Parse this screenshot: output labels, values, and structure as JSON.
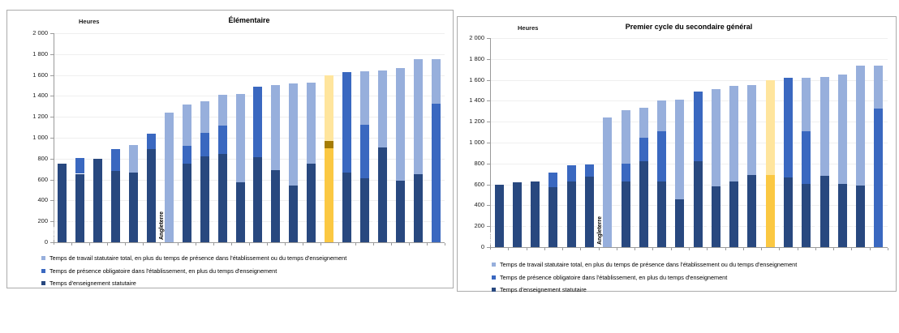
{
  "page": {
    "background": "#ffffff"
  },
  "colors": {
    "teaching": "#28487f",
    "presence": "#3a68c0",
    "total": "#97afdc",
    "france_teaching": "#fbc842",
    "france_presence": "#a57c04",
    "france_total": "#ffe59d",
    "axis": "#9a9a9a",
    "grid": "#efefef",
    "panel_border": "#ababab",
    "bar_label_default": "#ffffff"
  },
  "legend": {
    "items": [
      {
        "key": "total",
        "label": "Temps de travail statutaire total, en plus du temps de  présence dans l'établissement ou du temps d'enseignement"
      },
      {
        "key": "presence",
        "label": "Temps de présence obligatoire dans l'établissement, en plus du temps d'enseignement"
      },
      {
        "key": "teaching",
        "label": "Temps d'enseignement statutaire"
      }
    ]
  },
  "chart_data": [
    {
      "type": "bar",
      "title": "Élémentaire",
      "y_axis_label": "Heures",
      "ylim": [
        0,
        2000
      ],
      "y_tick_values": [
        0,
        200,
        400,
        600,
        800,
        1000,
        1200,
        1400,
        1600,
        1800,
        2000
      ],
      "y_tick_labels": [
        "0",
        "200",
        "400",
        "600",
        "800",
        "1 000",
        "1 200",
        "1 400",
        "1 600",
        "1 800",
        "2 000"
      ],
      "series_names": [
        "Temps d'enseignement statutaire",
        "Temps de présence obligatoire",
        "Temps de travail statutaire total"
      ],
      "bars": [
        {
          "label": "Italie",
          "teaching": 750,
          "presence": null,
          "total": null
        },
        {
          "label": "Finlande",
          "teaching": 655,
          "presence": 810,
          "total": null
        },
        {
          "label": "Autriche",
          "teaching": 800,
          "presence": null,
          "total": null
        },
        {
          "label": "Belgique nl.",
          "teaching": 680,
          "presence": 890,
          "total": null
        },
        {
          "label": "Belgique fr.",
          "teaching": 670,
          "presence": null,
          "total": 930
        },
        {
          "label": "Irlande",
          "teaching": 890,
          "presence": 1040,
          "total": null
        },
        {
          "label": "Angleterre",
          "teaching": null,
          "presence": null,
          "total": 1240,
          "label_color": "#000000"
        },
        {
          "label": "Portugal",
          "teaching": 755,
          "presence": 925,
          "total": 1315
        },
        {
          "label": "Écosse",
          "teaching": 820,
          "presence": 1050,
          "total": 1345
        },
        {
          "label": "Espagne",
          "teaching": 845,
          "presence": 1120,
          "total": 1410
        },
        {
          "label": "Pologne",
          "teaching": 570,
          "presence": null,
          "total": 1415
        },
        {
          "label": "Lituanie",
          "teaching": 815,
          "presence": 1490,
          "total": null
        },
        {
          "label": "UE-22",
          "teaching": 690,
          "presence": null,
          "total": 1505
        },
        {
          "label": "Estonie",
          "teaching": 540,
          "presence": null,
          "total": 1520
        },
        {
          "label": "OCDE",
          "teaching": 755,
          "presence": null,
          "total": 1530
        },
        {
          "label": "France",
          "teaching": 900,
          "presence": 970,
          "total": 1600,
          "highlight": true
        },
        {
          "label": "Danemark",
          "teaching": 665,
          "presence": 1625,
          "total": null
        },
        {
          "label": "Hongrie",
          "teaching": 610,
          "presence": 1125,
          "total": 1635
        },
        {
          "label": "Pays-Bas",
          "teaching": 910,
          "presence": null,
          "total": 1645
        },
        {
          "label": "Rép. tchèque",
          "teaching": 590,
          "presence": null,
          "total": 1665
        },
        {
          "label": "Allemagne",
          "teaching": 655,
          "presence": null,
          "total": 1750
        },
        {
          "label": "Suède",
          "teaching": null,
          "presence": 1325,
          "total": 1750
        }
      ]
    },
    {
      "type": "bar",
      "title": "Premier cycle du secondaire général",
      "y_axis_label": "Heures",
      "ylim": [
        0,
        2000
      ],
      "y_tick_values": [
        0,
        200,
        400,
        600,
        800,
        1000,
        1200,
        1400,
        1600,
        1800,
        2000
      ],
      "y_tick_labels": [
        "0",
        "200",
        "400",
        "600",
        "800",
        "1 000",
        "1 200",
        "1 400",
        "1 600",
        "1 800",
        "2 000"
      ],
      "series_names": [
        "Temps d'enseignement statutaire",
        "Temps de présence obligatoire",
        "Temps de travail statutaire total"
      ],
      "bars": [
        {
          "label": "Italie",
          "teaching": 600,
          "presence": null,
          "total": null
        },
        {
          "label": "Autriche",
          "teaching": 620,
          "presence": null,
          "total": null
        },
        {
          "label": "Belgique fr.",
          "teaching": 630,
          "presence": null,
          "total": null
        },
        {
          "label": "Finlande",
          "teaching": 570,
          "presence": 710,
          "total": null
        },
        {
          "label": "Belgique nl.",
          "teaching": 625,
          "presence": 785,
          "total": null
        },
        {
          "label": "Irlande",
          "teaching": 675,
          "presence": 790,
          "total": null
        },
        {
          "label": "Angleterre",
          "teaching": null,
          "presence": null,
          "total": 1240,
          "label_color": "#000000"
        },
        {
          "label": "Portugal",
          "teaching": 630,
          "presence": 800,
          "total": 1310
        },
        {
          "label": "Écosse",
          "teaching": 825,
          "presence": 1045,
          "total": 1335
        },
        {
          "label": "Espagne",
          "teaching": 630,
          "presence": 1110,
          "total": 1400
        },
        {
          "label": "Pologne",
          "teaching": 460,
          "presence": null,
          "total": 1410
        },
        {
          "label": "Lituanie",
          "teaching": 825,
          "presence": 1485,
          "total": null
        },
        {
          "label": "Estonie",
          "teaching": 580,
          "presence": null,
          "total": 1510
        },
        {
          "label": "UE-22",
          "teaching": 625,
          "presence": null,
          "total": 1540
        },
        {
          "label": "OCDE",
          "teaching": 690,
          "presence": null,
          "total": 1550
        },
        {
          "label": "France",
          "teaching": 690,
          "presence": null,
          "total": 1600,
          "highlight": true
        },
        {
          "label": "Danemark",
          "teaching": 665,
          "presence": 1620,
          "total": null
        },
        {
          "label": "Hongrie",
          "teaching": 605,
          "presence": 1110,
          "total": 1620
        },
        {
          "label": "Pays-Bas",
          "teaching": 680,
          "presence": null,
          "total": 1625
        },
        {
          "label": "Rép. tchèque",
          "teaching": 605,
          "presence": null,
          "total": 1655
        },
        {
          "label": "Allemagne",
          "teaching": 590,
          "presence": null,
          "total": 1735
        },
        {
          "label": "Suède",
          "teaching": null,
          "presence": 1325,
          "total": 1735
        }
      ]
    }
  ]
}
